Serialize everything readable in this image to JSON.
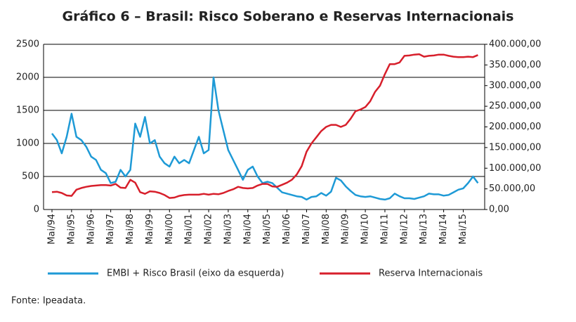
{
  "chart_data": {
    "type": "line",
    "title": "Gráfico 6 – Brasil: Risco Soberano e Reservas Internacionais",
    "source": "Fonte: Ipeadata.",
    "categories": [
      "Mai/94",
      null,
      null,
      null,
      "Mai/95",
      null,
      null,
      null,
      "Mai/96",
      null,
      null,
      null,
      "Mai/97",
      null,
      null,
      null,
      "Mai/98",
      null,
      null,
      null,
      "Mai/99",
      null,
      null,
      null,
      "Mai/00",
      null,
      null,
      null,
      "Mai/01",
      null,
      null,
      null,
      "Mai/02",
      null,
      null,
      null,
      "Mai/03",
      null,
      null,
      null,
      "Mai/04",
      null,
      null,
      null,
      "Mai/05",
      null,
      null,
      null,
      "Mai/06",
      null,
      null,
      null,
      "Mai/07",
      null,
      null,
      null,
      "Mai/08",
      null,
      null,
      null,
      "Mai/09",
      null,
      null,
      null,
      "Mai/10",
      null,
      null,
      null,
      "Mai/11",
      null,
      null,
      null,
      "Mai/12",
      null,
      null,
      null,
      "Mai/13",
      null,
      null,
      null,
      "Mai/14",
      null,
      null,
      null,
      "Mai/15",
      null,
      null,
      null
    ],
    "series": [
      {
        "name": "EMBI + Risco Brasil (eixo da esquerda)",
        "color": "#1e9ad6",
        "axis": "y",
        "values": [
          1150,
          1050,
          850,
          1100,
          1450,
          1100,
          1050,
          950,
          800,
          750,
          600,
          550,
          400,
          420,
          600,
          500,
          600,
          1300,
          1100,
          1400,
          1000,
          1050,
          800,
          700,
          650,
          800,
          700,
          750,
          700,
          900,
          1100,
          850,
          900,
          2000,
          1500,
          1200,
          900,
          750,
          600,
          450,
          600,
          650,
          500,
          400,
          420,
          400,
          330,
          260,
          240,
          220,
          200,
          190,
          150,
          190,
          200,
          250,
          210,
          270,
          480,
          440,
          350,
          280,
          220,
          200,
          190,
          200,
          180,
          160,
          150,
          170,
          240,
          200,
          170,
          170,
          160,
          180,
          200,
          240,
          230,
          230,
          210,
          220,
          260,
          300,
          320,
          400,
          500,
          400
        ]
      },
      {
        "name": "Reserva Internacionais",
        "color": "#d71f2b",
        "axis": "y2",
        "values": [
          42000,
          43000,
          40000,
          34000,
          33000,
          48000,
          52000,
          55000,
          57000,
          58000,
          59000,
          59000,
          58000,
          62000,
          53000,
          52000,
          72000,
          65000,
          42000,
          38000,
          44000,
          43000,
          40000,
          35000,
          28000,
          29000,
          33000,
          35000,
          36000,
          36000,
          36000,
          38000,
          36000,
          38000,
          37000,
          40000,
          45000,
          49000,
          55000,
          52000,
          51000,
          52000,
          58000,
          62000,
          62000,
          56000,
          55000,
          60000,
          65000,
          72000,
          85000,
          105000,
          140000,
          160000,
          175000,
          190000,
          200000,
          205000,
          205000,
          200000,
          205000,
          220000,
          238000,
          242000,
          248000,
          262000,
          285000,
          300000,
          328000,
          352000,
          352000,
          356000,
          372000,
          373000,
          375000,
          376000,
          370000,
          372000,
          373000,
          375000,
          375000,
          372000,
          370000,
          369000,
          369000,
          370000,
          369000,
          374000
        ]
      }
    ],
    "ylim": [
      0,
      2500
    ],
    "yticks": [
      0,
      500,
      1000,
      1500,
      2000,
      2500
    ],
    "y2lim": [
      0,
      400000
    ],
    "y2ticks": [
      {
        "value": 0,
        "label": "0,00"
      },
      {
        "value": 50000,
        "label": "50.000,00"
      },
      {
        "value": 100000,
        "label": "100.000,00"
      },
      {
        "value": 150000,
        "label": "150.000,00"
      },
      {
        "value": 200000,
        "label": "200.000,00"
      },
      {
        "value": 250000,
        "label": "250.000,00"
      },
      {
        "value": 300000,
        "label": "300.000,00"
      },
      {
        "value": 350000,
        "label": "350.000,00"
      },
      {
        "value": 400000,
        "label": "400.000,00"
      }
    ],
    "grid": true,
    "legend": "bottom"
  }
}
